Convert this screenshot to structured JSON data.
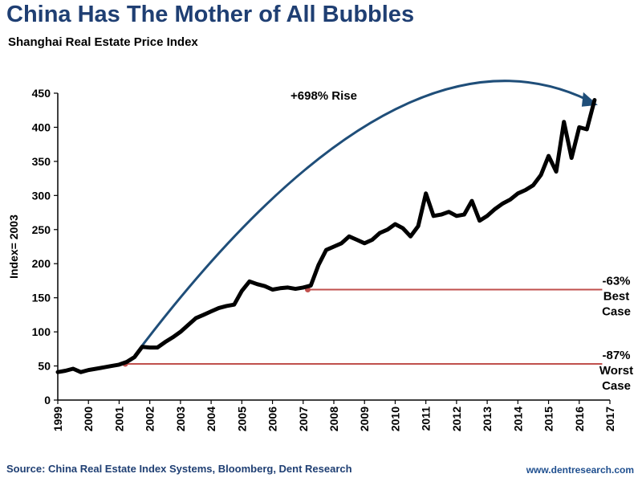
{
  "header": {
    "title": "China Has The Mother of All Bubbles",
    "subtitle": "Shanghai Real Estate Price Index"
  },
  "footer": {
    "source": "Source: China Real Estate Index Systems, Bloomberg, Dent Research",
    "site": "www.dentresearch.com"
  },
  "colors": {
    "title": "#1f3f73",
    "series": "#000000",
    "arrow": "#1f4e79",
    "case_line": "#c0504d"
  },
  "chart_data": {
    "type": "line",
    "title": "Shanghai Real Estate Price Index",
    "ylabel": "Index= 2003",
    "xlabel": "",
    "ylim": [
      0,
      450
    ],
    "xlim": [
      1999,
      2017
    ],
    "yticks": [
      0,
      50,
      100,
      150,
      200,
      250,
      300,
      350,
      400,
      450
    ],
    "xticks": [
      1999,
      2000,
      2001,
      2002,
      2003,
      2004,
      2005,
      2006,
      2007,
      2008,
      2009,
      2010,
      2011,
      2012,
      2013,
      2014,
      2015,
      2016,
      2017
    ],
    "grid": false,
    "series": [
      {
        "x": [
          1999.0,
          1999.25,
          1999.5,
          1999.75,
          2000.0,
          2000.25,
          2000.5,
          2000.75,
          2001.0,
          2001.25,
          2001.5,
          2001.75,
          2002.0,
          2002.25,
          2002.5,
          2002.75,
          2003.0,
          2003.25,
          2003.5,
          2003.75,
          2004.0,
          2004.25,
          2004.5,
          2004.75,
          2005.0,
          2005.25,
          2005.5,
          2005.75,
          2006.0,
          2006.25,
          2006.5,
          2006.75,
          2007.0,
          2007.25,
          2007.5,
          2007.75,
          2008.0,
          2008.25,
          2008.5,
          2008.75,
          2009.0,
          2009.25,
          2009.5,
          2009.75,
          2010.0,
          2010.25,
          2010.5,
          2010.75,
          2011.0,
          2011.25,
          2011.5,
          2011.75,
          2012.0,
          2012.25,
          2012.5,
          2012.75,
          2013.0,
          2013.25,
          2013.5,
          2013.75,
          2014.0,
          2014.25,
          2014.5,
          2014.75,
          2015.0,
          2015.25,
          2015.5,
          2015.75,
          2016.0,
          2016.25,
          2016.5
        ],
        "y": [
          41,
          43,
          46,
          41,
          44,
          46,
          48,
          50,
          52,
          56,
          63,
          78,
          77,
          77,
          85,
          92,
          100,
          110,
          120,
          125,
          130,
          135,
          138,
          140,
          160,
          174,
          170,
          167,
          162,
          164,
          165,
          163,
          165,
          168,
          198,
          220,
          225,
          230,
          240,
          235,
          230,
          235,
          245,
          250,
          258,
          252,
          240,
          255,
          303,
          270,
          272,
          276,
          270,
          272,
          292,
          263,
          270,
          280,
          288,
          294,
          303,
          308,
          315,
          330,
          358,
          335,
          408,
          355,
          400,
          397,
          440
        ]
      }
    ],
    "reference_lines": [
      {
        "y": 162,
        "x_start": 2007.15,
        "x_end": 2016.75,
        "label_pct": "-63%",
        "label_case": "Best",
        "label_case2": "Case"
      },
      {
        "y": 53,
        "x_start": 2001.2,
        "x_end": 2016.75,
        "label_pct": "-87%",
        "label_case": "Worst",
        "label_case2": "Case"
      }
    ],
    "arrow": {
      "from": [
        2001.5,
        65
      ],
      "to": [
        2016.5,
        435
      ],
      "label": "+698% Rise"
    }
  }
}
